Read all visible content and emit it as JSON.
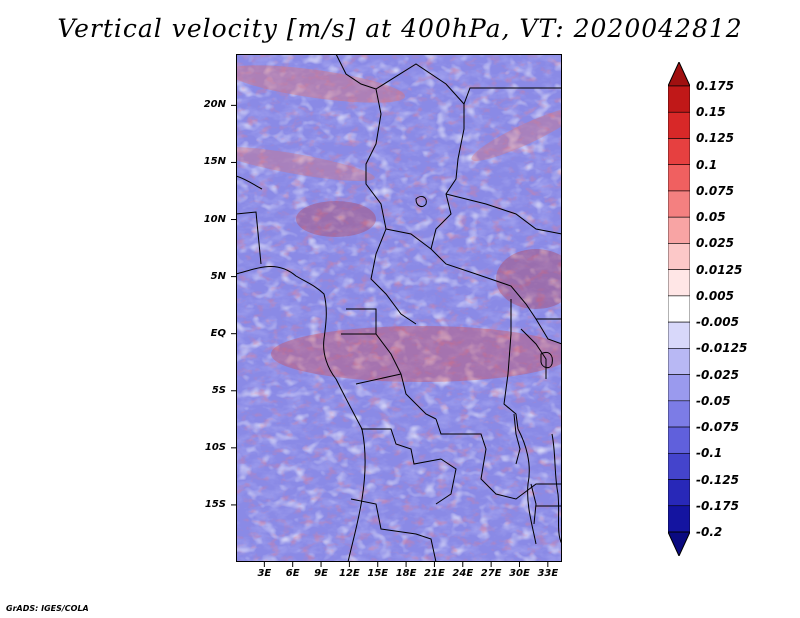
{
  "title": "Vertical velocity [m/s] at 400hPa, VT: 2020042812",
  "credit": "GrADS: IGES/COLA",
  "map": {
    "lat_labels": [
      "20N",
      "15N",
      "10N",
      "5N",
      "EQ",
      "5S",
      "10S",
      "15S"
    ],
    "lon_labels": [
      "3E",
      "6E",
      "9E",
      "12E",
      "15E",
      "18E",
      "21E",
      "24E",
      "27E",
      "30E",
      "33E"
    ],
    "lon_range": [
      0,
      34.5
    ],
    "lat_range": [
      -20,
      24.5
    ],
    "background_color": "#8a8ae6"
  },
  "colorbar": {
    "levels": [
      "0.175",
      "0.15",
      "0.125",
      "0.1",
      "0.075",
      "0.05",
      "0.025",
      "0.0125",
      "0.005",
      "-0.005",
      "-0.0125",
      "-0.025",
      "-0.05",
      "-0.075",
      "-0.1",
      "-0.125",
      "-0.175",
      "-0.2"
    ],
    "colors": [
      "#a01010",
      "#c01818",
      "#d82828",
      "#e64040",
      "#f06060",
      "#f48080",
      "#f8a4a4",
      "#fcc8c8",
      "#ffe6e6",
      "#ffffff",
      "#d8d8fa",
      "#b8b8f4",
      "#9a9aee",
      "#7c7ce6",
      "#6060dc",
      "#4444cc",
      "#2828b8",
      "#1414a0",
      "#0a0a80"
    ]
  }
}
